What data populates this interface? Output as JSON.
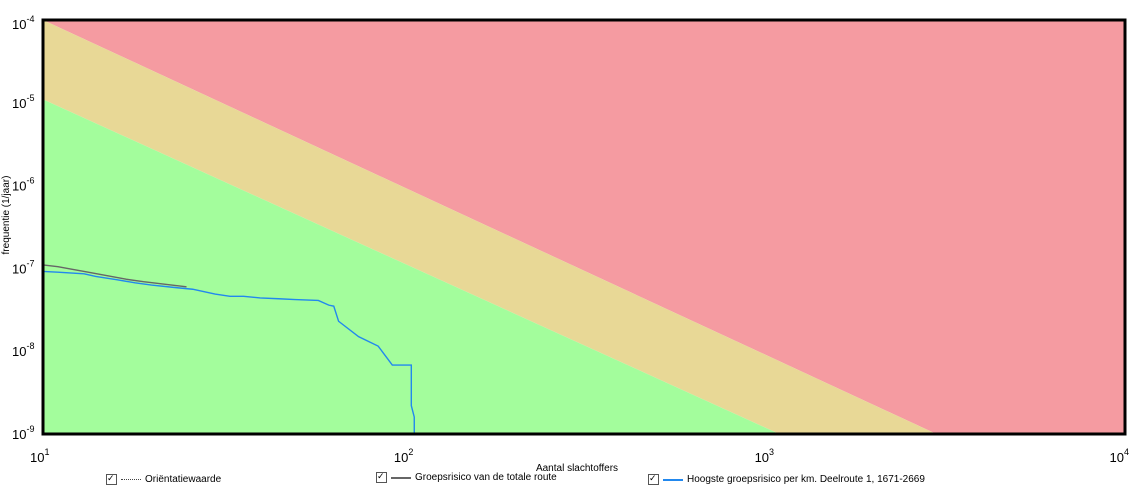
{
  "chart_data": {
    "type": "line",
    "xscale": "log",
    "yscale": "log",
    "xlim": [
      10,
      10000
    ],
    "ylim": [
      1e-09,
      0.0001
    ],
    "xlabel": "Aantal slachtoffers",
    "ylabel": "frequentie (1/jaar)",
    "x_ticks": [
      {
        "base": "10",
        "exp": "1",
        "value": 10
      },
      {
        "base": "10",
        "exp": "2",
        "value": 100
      },
      {
        "base": "10",
        "exp": "3",
        "value": 1000
      },
      {
        "base": "10",
        "exp": "4",
        "value": 10000
      }
    ],
    "y_ticks": [
      {
        "base": "10",
        "exp": "-4",
        "value": 0.0001
      },
      {
        "base": "10",
        "exp": "-5",
        "value": 1e-05
      },
      {
        "base": "10",
        "exp": "-6",
        "value": 1e-06
      },
      {
        "base": "10",
        "exp": "-7",
        "value": 1e-07
      },
      {
        "base": "10",
        "exp": "-8",
        "value": 1e-08
      },
      {
        "base": "10",
        "exp": "-9",
        "value": 1e-09
      }
    ],
    "regions": [
      {
        "color": "#f59ba1",
        "points": [
          [
            10,
            0.0001
          ],
          [
            10000,
            0.0001
          ],
          [
            10000,
            1e-09
          ],
          [
            3000,
            1e-09
          ]
        ]
      },
      {
        "color": "#e8d896",
        "points": [
          [
            10,
            0.0001
          ],
          [
            3000,
            1e-09
          ],
          [
            1100,
            1e-09
          ],
          [
            10,
            1.1e-05
          ]
        ]
      },
      {
        "color": "#a3fd9c",
        "points": [
          [
            10,
            1.1e-05
          ],
          [
            1100,
            1e-09
          ],
          [
            10,
            1e-09
          ]
        ]
      }
    ],
    "series": [
      {
        "name": "Groepsrisico van de totale route",
        "color": "#666666",
        "points": [
          [
            10,
            1.1e-07
          ],
          [
            11,
            1.05e-07
          ],
          [
            12,
            9.8e-08
          ],
          [
            13,
            9.2e-08
          ],
          [
            15,
            8.2e-08
          ],
          [
            17,
            7.4e-08
          ],
          [
            19,
            6.9e-08
          ],
          [
            22,
            6.4e-08
          ],
          [
            25,
            6e-08
          ]
        ]
      },
      {
        "name": "Hoogste groepsrisico per km. Deelroute 1, 1671-2669",
        "color": "#2288ee",
        "points": [
          [
            10,
            9.2e-08
          ],
          [
            11,
            9e-08
          ],
          [
            13,
            8.6e-08
          ],
          [
            14,
            8e-08
          ],
          [
            16,
            7.3e-08
          ],
          [
            18,
            6.7e-08
          ],
          [
            20,
            6.3e-08
          ],
          [
            23,
            5.9e-08
          ],
          [
            26,
            5.6e-08
          ],
          [
            30,
            4.9e-08
          ],
          [
            33,
            4.6e-08
          ],
          [
            36,
            4.6e-08
          ],
          [
            40,
            4.4e-08
          ],
          [
            45,
            4.3e-08
          ],
          [
            50,
            4.2e-08
          ],
          [
            58,
            4.1e-08
          ],
          [
            62,
            3.6e-08
          ],
          [
            64,
            3.5e-08
          ],
          [
            66,
            2.3e-08
          ],
          [
            75,
            1.5e-08
          ],
          [
            85,
            1.15e-08
          ],
          [
            93,
            6.8e-09
          ],
          [
            105,
            6.8e-09
          ],
          [
            105,
            2.2e-09
          ],
          [
            107,
            1.6e-09
          ],
          [
            107,
            1e-09
          ]
        ]
      }
    ],
    "legend": [
      {
        "label": "Oriëntatiewaarde",
        "style": "dotted",
        "color": "#444444"
      },
      {
        "label": "Groepsrisico van de totale route",
        "style": "solid",
        "color": "#666666"
      },
      {
        "label": "Hoogste groepsrisico per km. Deelroute 1, 1671-2669",
        "style": "solid",
        "color": "#2288ee"
      }
    ],
    "legend_position": "bottom"
  }
}
